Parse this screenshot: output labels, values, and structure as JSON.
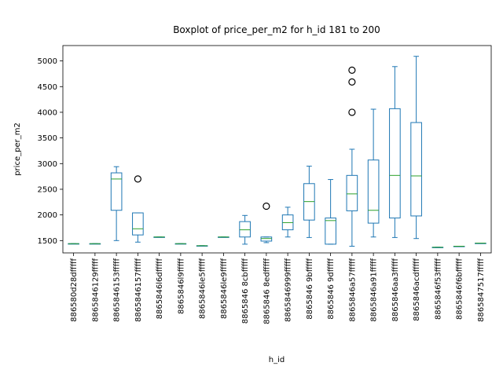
{
  "chart_data": {
    "type": "boxplot",
    "title": "Boxplot of price_per_m2 for h_id 181 to 200",
    "xlabel": "h_id",
    "ylabel": "price_per_m2",
    "ylim": [
      1260,
      5300
    ],
    "yticks": [
      1500,
      2000,
      2500,
      3000,
      3500,
      4000,
      4500,
      5000
    ],
    "grid": false,
    "colors": {
      "box": "#1f77b4",
      "median": "#2ca02c",
      "outlier": "#000000"
    },
    "categories": [
      "886580d28dfffff",
      "8865846129fffff",
      "8865846153fffff",
      "8865846157fffff",
      "8865846l6dfffff",
      "8865846l9fffff",
      "8865846le5fffff",
      "8865846le9fffff",
      "8865846 8cbfffff",
      "8865846 8edfffff",
      "8865846999fffff",
      "8865846 9bfffff",
      "8865846 9dfffff",
      "8865846a57fffff",
      "8865846a91fffff",
      "8865846aa3fffff",
      "8865846acdfffff",
      "8865846f53fffff",
      "8865846f6bfffff",
      "8865847517fffff"
    ],
    "boxes": [
      {
        "whislo": 1440,
        "q1": 1440,
        "med": 1440,
        "q3": 1440,
        "whishi": 1440,
        "fliers": []
      },
      {
        "whislo": 1440,
        "q1": 1440,
        "med": 1440,
        "q3": 1440,
        "whishi": 1440,
        "fliers": []
      },
      {
        "whislo": 1500,
        "q1": 2090,
        "med": 2700,
        "q3": 2820,
        "whishi": 2940,
        "fliers": []
      },
      {
        "whislo": 1470,
        "q1": 1610,
        "med": 1730,
        "q3": 2040,
        "whishi": 2040,
        "fliers": [
          2700
        ]
      },
      {
        "whislo": 1570,
        "q1": 1570,
        "med": 1570,
        "q3": 1570,
        "whishi": 1570,
        "fliers": []
      },
      {
        "whislo": 1440,
        "q1": 1440,
        "med": 1440,
        "q3": 1440,
        "whishi": 1440,
        "fliers": []
      },
      {
        "whislo": 1400,
        "q1": 1400,
        "med": 1400,
        "q3": 1400,
        "whishi": 1400,
        "fliers": []
      },
      {
        "whislo": 1570,
        "q1": 1570,
        "med": 1570,
        "q3": 1570,
        "whishi": 1570,
        "fliers": []
      },
      {
        "whislo": 1430,
        "q1": 1570,
        "med": 1710,
        "q3": 1870,
        "whishi": 1990,
        "fliers": []
      },
      {
        "whislo": 1460,
        "q1": 1490,
        "med": 1540,
        "q3": 1570,
        "whishi": 1570,
        "fliers": [
          2170
        ]
      },
      {
        "whislo": 1570,
        "q1": 1710,
        "med": 1850,
        "q3": 2000,
        "whishi": 2150,
        "fliers": []
      },
      {
        "whislo": 1560,
        "q1": 1900,
        "med": 2260,
        "q3": 2610,
        "whishi": 2950,
        "fliers": []
      },
      {
        "whislo": 1430,
        "q1": 1430,
        "med": 1890,
        "q3": 1940,
        "whishi": 2690,
        "fliers": []
      },
      {
        "whislo": 1390,
        "q1": 2080,
        "med": 2410,
        "q3": 2770,
        "whishi": 3280,
        "fliers": [
          4000,
          4590,
          4820
        ]
      },
      {
        "whislo": 1570,
        "q1": 1840,
        "med": 2090,
        "q3": 3070,
        "whishi": 4060,
        "fliers": []
      },
      {
        "whislo": 1560,
        "q1": 1940,
        "med": 2770,
        "q3": 4070,
        "whishi": 4890,
        "fliers": []
      },
      {
        "whislo": 1540,
        "q1": 1980,
        "med": 2760,
        "q3": 3800,
        "whishi": 5090,
        "fliers": []
      },
      {
        "whislo": 1370,
        "q1": 1370,
        "med": 1370,
        "q3": 1370,
        "whishi": 1370,
        "fliers": []
      },
      {
        "whislo": 1390,
        "q1": 1390,
        "med": 1390,
        "q3": 1390,
        "whishi": 1390,
        "fliers": []
      },
      {
        "whislo": 1450,
        "q1": 1450,
        "med": 1450,
        "q3": 1450,
        "whishi": 1450,
        "fliers": []
      }
    ]
  }
}
